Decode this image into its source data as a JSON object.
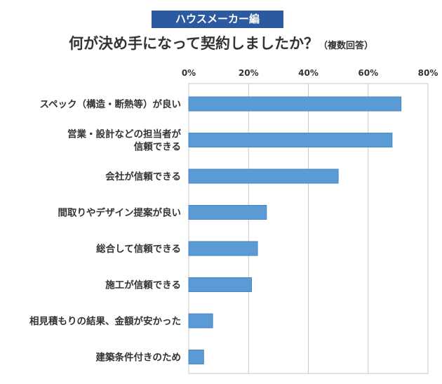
{
  "header": {
    "tag": "ハウスメーカー編",
    "title": "何が決め手になって契約しましたか？",
    "title_note": "（複数回答）"
  },
  "colors": {
    "bar_fill": "#5b9bd5",
    "bar_stroke": "#4a86c0",
    "tag_bg": "#2c5aa0",
    "grid": "#c8c8c8"
  },
  "chart_data": {
    "type": "bar",
    "orientation": "horizontal",
    "title": "何が決め手になって契約しましたか？（複数回答）",
    "xlabel": "",
    "ylabel": "",
    "xlim": [
      0,
      80
    ],
    "x_ticks": [
      "0%",
      "20%",
      "40%",
      "60%",
      "80%"
    ],
    "grid": true,
    "categories": [
      [
        "スペック（構造・断熱等）が良い"
      ],
      [
        "営業・設計などの担当者が",
        "信頼できる"
      ],
      [
        "会社が信頼できる"
      ],
      [
        "間取りやデザイン提案が良い"
      ],
      [
        "総合して信頼できる"
      ],
      [
        "施工が信頼できる"
      ],
      [
        "相見積もりの結果、金額が安かった"
      ],
      [
        "建築条件付きのため"
      ]
    ],
    "values": [
      71,
      68,
      50,
      26,
      23,
      21,
      8,
      5
    ]
  }
}
